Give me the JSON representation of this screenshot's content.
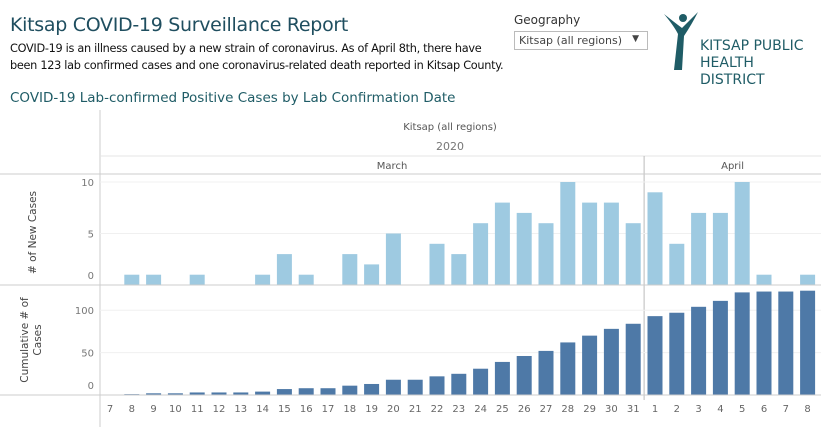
{
  "header": {
    "title": "Kitsap COVID-19 Surveillance Report",
    "description": "COVID-19 is an illness caused by a new strain of coronavirus. As of April 8th, there have been 123 lab confirmed cases and one coronavirus-related death reported in Kitsap County."
  },
  "filter": {
    "label": "Geography",
    "value": "Kitsap (all regions)",
    "icon": "caret-down-icon"
  },
  "logo": {
    "line1": "KITSAP PUBLIC",
    "line2": "HEALTH DISTRICT"
  },
  "chart_data": {
    "type": "bar",
    "title": "COVID-19 Lab-confirmed Positive Cases by Lab Confirmation Date",
    "header_region": "Kitsap (all regions)",
    "year": "2020",
    "months": [
      {
        "name": "March",
        "days": [
          "7",
          "8",
          "9",
          "10",
          "11",
          "12",
          "13",
          "14",
          "15",
          "16",
          "17",
          "18",
          "19",
          "20",
          "21",
          "22",
          "23",
          "24",
          "25",
          "26",
          "27",
          "28",
          "29",
          "30",
          "31"
        ]
      },
      {
        "name": "April",
        "days": [
          "1",
          "2",
          "3",
          "4",
          "5",
          "6",
          "7",
          "8"
        ]
      }
    ],
    "categories": [
      "7",
      "8",
      "9",
      "10",
      "11",
      "12",
      "13",
      "14",
      "15",
      "16",
      "17",
      "18",
      "19",
      "20",
      "21",
      "22",
      "23",
      "24",
      "25",
      "26",
      "27",
      "28",
      "29",
      "30",
      "31",
      "1",
      "2",
      "3",
      "4",
      "5",
      "6",
      "7",
      "8"
    ],
    "series": [
      {
        "name": "# of New Cases",
        "color": "#9ecae1",
        "ylim": [
          0,
          10
        ],
        "ticks": [
          "0",
          "5",
          "10"
        ],
        "values": [
          0,
          1,
          1,
          0,
          1,
          0,
          0,
          1,
          3,
          1,
          0,
          3,
          2,
          5,
          0,
          4,
          3,
          6,
          8,
          7,
          6,
          10,
          8,
          8,
          6,
          9,
          4,
          7,
          7,
          10,
          1,
          0,
          1
        ]
      },
      {
        "name": "Cumulative # of Cases",
        "color": "#4e79a7",
        "ylim": [
          0,
          125
        ],
        "ticks": [
          "0",
          "50",
          "100"
        ],
        "values": [
          0,
          1,
          2,
          2,
          3,
          3,
          3,
          4,
          7,
          8,
          8,
          11,
          13,
          18,
          18,
          22,
          25,
          31,
          39,
          46,
          52,
          62,
          70,
          78,
          84,
          93,
          97,
          104,
          111,
          121,
          122,
          122,
          123
        ]
      }
    ],
    "grid": true
  }
}
